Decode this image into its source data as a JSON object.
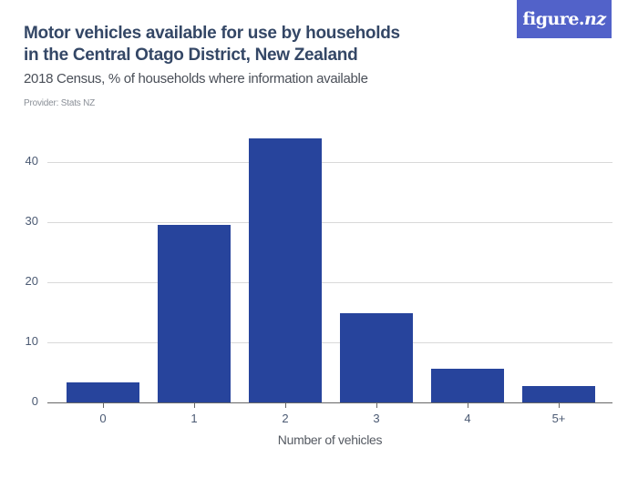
{
  "header": {
    "title": "Motor vehicles available for use by households in the Central Otago District, New Zealand",
    "subtitle": "2018 Census, % of households where information available",
    "provider": "Provider: Stats NZ",
    "logo_main": "figure.",
    "logo_suffix": "nz"
  },
  "colors": {
    "bar": "#27449c",
    "logo_bg": "#5262c9",
    "title": "#344766",
    "gridline": "#d9d9d9"
  },
  "chart_data": {
    "type": "bar",
    "title": "Motor vehicles available for use by households in the Central Otago District, New Zealand",
    "subtitle": "2018 Census, % of households where information available",
    "categories": [
      "0",
      "1",
      "2",
      "3",
      "4",
      "5+"
    ],
    "values": [
      3.3,
      29.5,
      44.0,
      14.9,
      5.6,
      2.7
    ],
    "xlabel": "Number of vehicles",
    "ylabel": "",
    "ylim": [
      0,
      45
    ],
    "yticks": [
      "0",
      "10",
      "20",
      "30",
      "40"
    ],
    "grid": true,
    "legend": null
  }
}
